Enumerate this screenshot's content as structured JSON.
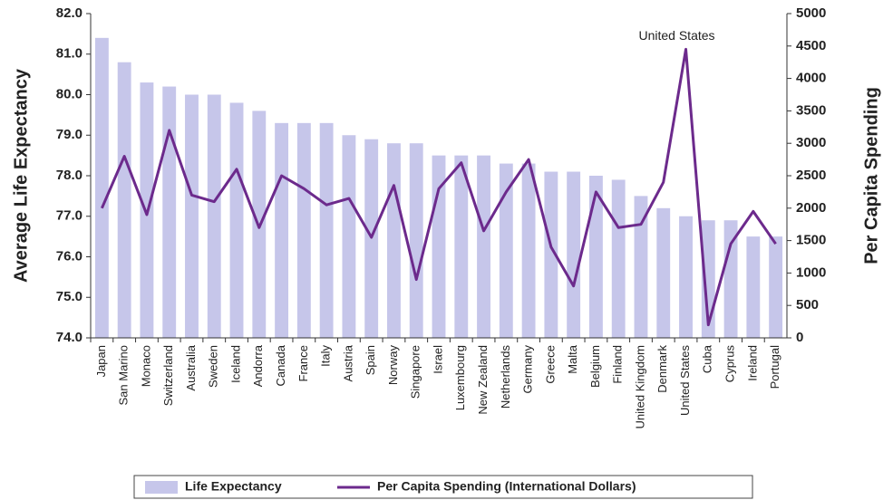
{
  "chart_data": {
    "type": "bar",
    "y_label": "Average Life Expectancy",
    "y2_label": "Per Capita Spending",
    "annotation": "United States",
    "categories": [
      "Japan",
      "San Marino",
      "Monaco",
      "Switzerland",
      "Australia",
      "Sweden",
      "Iceland",
      "Andorra",
      "Canada",
      "France",
      "Italy",
      "Austria",
      "Spain",
      "Norway",
      "Singapore",
      "Israel",
      "Luxembourg",
      "New Zealand",
      "Netherlands",
      "Germany",
      "Greece",
      "Malta",
      "Belgium",
      "Finland",
      "United Kingdom",
      "Denmark",
      "United States",
      "Cuba",
      "Cyprus",
      "Ireland",
      "Portugal"
    ],
    "series": [
      {
        "name": "Life Expectancy",
        "type": "bar",
        "color": "#c6c6ea",
        "values": [
          81.4,
          80.8,
          80.3,
          80.2,
          80.0,
          80.0,
          79.8,
          79.6,
          79.3,
          79.3,
          79.3,
          79.0,
          78.9,
          78.8,
          78.8,
          78.5,
          78.5,
          78.5,
          78.3,
          78.3,
          78.1,
          78.1,
          78.0,
          77.9,
          77.5,
          77.2,
          77.0,
          76.9,
          76.9,
          76.5,
          76.5
        ]
      },
      {
        "name": "Per Capita Spending (International Dollars)",
        "type": "line",
        "axis": "y2",
        "color": "#6c2a8c",
        "values": [
          2000,
          2800,
          1900,
          3200,
          2200,
          2100,
          2600,
          1700,
          2500,
          2300,
          2050,
          2150,
          1550,
          2350,
          900,
          2300,
          2700,
          1650,
          2250,
          2750,
          1400,
          800,
          2250,
          1700,
          1750,
          2400,
          4450,
          200,
          1450,
          1950,
          1450
        ]
      }
    ],
    "ylim": [
      74,
      82
    ],
    "yticks": [
      {
        "value": 74,
        "label": "74.0"
      },
      {
        "value": 75,
        "label": "75.0"
      },
      {
        "value": 76,
        "label": "76.0"
      },
      {
        "value": 77,
        "label": "77.0"
      },
      {
        "value": 78,
        "label": "78.0"
      },
      {
        "value": 79,
        "label": "79.0"
      },
      {
        "value": 80,
        "label": "80.0"
      },
      {
        "value": 81,
        "label": "81.0"
      },
      {
        "value": 82,
        "label": "82.0"
      }
    ],
    "y2lim": [
      0,
      5000
    ],
    "y2ticks": [
      0,
      500,
      1000,
      1500,
      2000,
      2500,
      3000,
      3500,
      4000,
      4500,
      5000
    ],
    "legend": "bottom"
  }
}
